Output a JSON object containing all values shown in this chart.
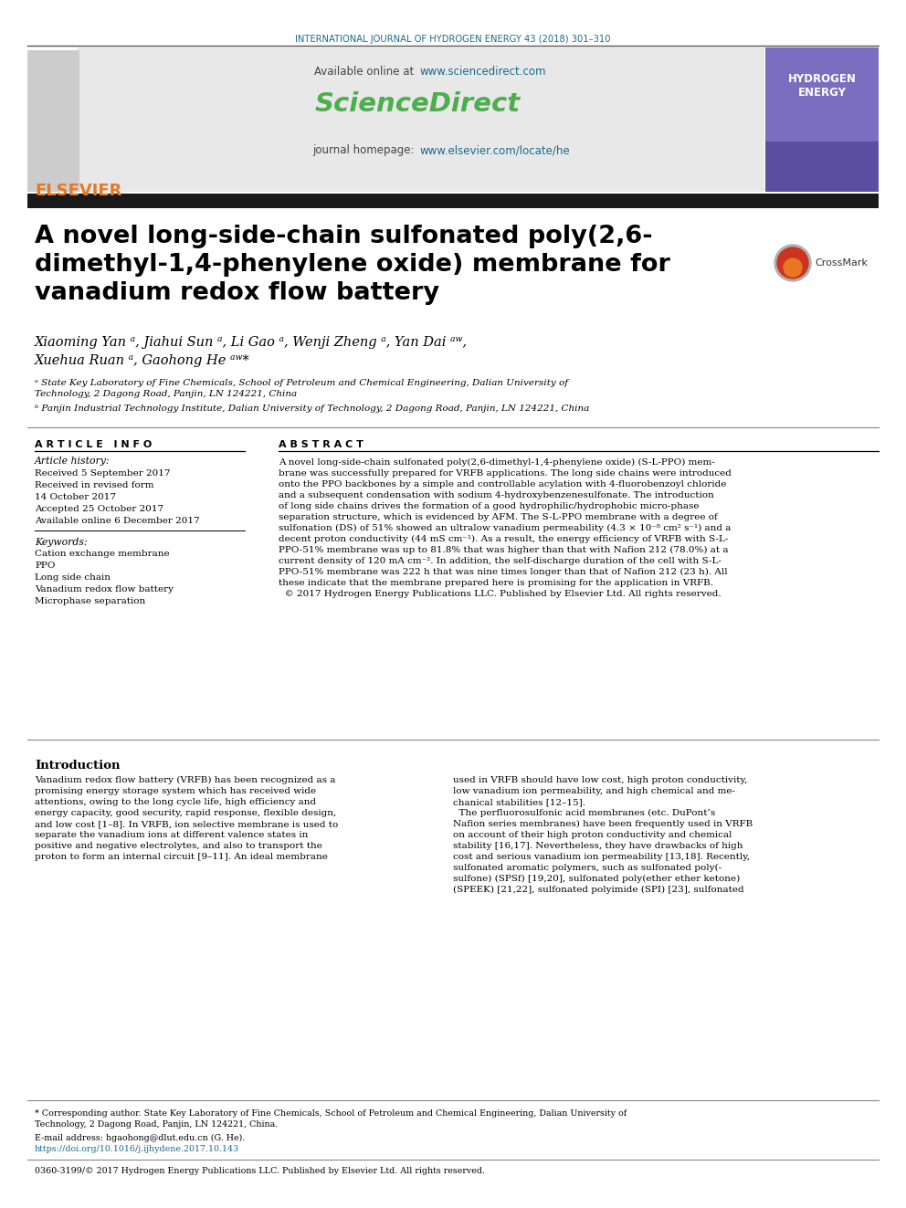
{
  "journal_header": "INTERNATIONAL JOURNAL OF HYDROGEN ENERGY 43 (2018) 301–310",
  "journal_header_color": "#1a6b8a",
  "sciencedirect_url": "www.sciencedirect.com",
  "sciencedirect_color": "#4cae4c",
  "elsevier_url": "www.elsevier.com/locate/he",
  "elsevier_text": "ELSEVIER",
  "elsevier_color_logo": "#e87722",
  "title": "A novel long-side-chain sulfonated poly(2,6-\ndimethyl-1,4-phenylene oxide) membrane for\nvanadium redox flow battery",
  "authors": "Xiaoming Yan ᵃ, Jiahui Sun ᵃ, Li Gao ᵃ, Wenji Zheng ᵃ, Yan Dai ᵃʷ,\nXuehua Ruan ᵃ, Gaohong He ᵃʷ*",
  "affil_a": "ᵃ State Key Laboratory of Fine Chemicals, School of Petroleum and Chemical Engineering, Dalian University of\nTechnology, 2 Dagong Road, Panjin, LN 124221, China",
  "affil_b": "ᵇ Panjin Industrial Technology Institute, Dalian University of Technology, 2 Dagong Road, Panjin, LN 124221, China",
  "article_info_header": "A R T I C L E   I N F O",
  "article_history_label": "Article history:",
  "received1": "Received 5 September 2017",
  "received_revised": "Received in revised form",
  "received_revised_date": "14 October 2017",
  "accepted": "Accepted 25 October 2017",
  "available": "Available online 6 December 2017",
  "keywords_label": "Keywords:",
  "keywords": [
    "Cation exchange membrane",
    "PPO",
    "Long side chain",
    "Vanadium redox flow battery",
    "Microphase separation"
  ],
  "abstract_header": "A B S T R A C T",
  "abstract_text": "A novel long-side-chain sulfonated poly(2,6-dimethyl-1,4-phenylene oxide) (S-L-PPO) mem-\nbrane was successfully prepared for VRFB applications. The long side chains were introduced\nonto the PPO backbones by a simple and controllable acylation with 4-fluorobenzoyl chloride\nand a subsequent condensation with sodium 4-hydroxybenzenesulfonate. The introduction\nof long side chains drives the formation of a good hydrophilic/hydrophobic micro-phase\nseparation structure, which is evidenced by AFM. The S-L-PPO membrane with a degree of\nsulfonation (DS) of 51% showed an ultralow vanadium permeability (4.3 × 10⁻⁸ cm² s⁻¹) and a\ndecent proton conductivity (44 mS cm⁻¹). As a result, the energy efficiency of VRFB with S-L-\nPPO-51% membrane was up to 81.8% that was higher than that with Nafion 212 (78.0%) at a\ncurrent density of 120 mA cm⁻². In addition, the self-discharge duration of the cell with S-L-\nPPO-51% membrane was 222 h that was nine times longer than that of Nafion 212 (23 h). All\nthese indicate that the membrane prepared here is promising for the application in VRFB.\n  © 2017 Hydrogen Energy Publications LLC. Published by Elsevier Ltd. All rights reserved.",
  "intro_header": "Introduction",
  "intro_text_col1": "Vanadium redox flow battery (VRFB) has been recognized as a\npromising energy storage system which has received wide\nattentions, owing to the long cycle life, high efficiency and\nenergy capacity, good security, rapid response, flexible design,\nand low cost [1–8]. In VRFB, ion selective membrane is used to\nseparate the vanadium ions at different valence states in\npositive and negative electrolytes, and also to transport the\nproton to form an internal circuit [9–11]. An ideal membrane",
  "intro_text_col2": "used in VRFB should have low cost, high proton conductivity,\nlow vanadium ion permeability, and high chemical and me-\nchanical stabilities [12–15].\n  The perfluorosulfonic acid membranes (etc. DuPont’s\nNafion series membranes) have been frequently used in VRFB\non account of their high proton conductivity and chemical\nstability [16,17]. Nevertheless, they have drawbacks of high\ncost and serious vanadium ion permeability [13,18]. Recently,\nsulfonated aromatic polymers, such as sulfonated poly(-\nsulfone) (SPSf) [19,20], sulfonated poly(ether ether ketone)\n(SPEEK) [21,22], sulfonated polyimide (SPI) [23], sulfonated",
  "footnote_star": "* Corresponding author. State Key Laboratory of Fine Chemicals, School of Petroleum and Chemical Engineering, Dalian University of\nTechnology, 2 Dagong Road, Panjin, LN 124221, China.",
  "footnote_email": "E-mail address: hgaohong@dlut.edu.cn (G. He).",
  "footnote_doi": "https://doi.org/10.1016/j.ijhydene.2017.10.143",
  "footnote_issn": "0360-3199/© 2017 Hydrogen Energy Publications LLC. Published by Elsevier Ltd. All rights reserved.",
  "bg_color": "#ffffff",
  "black_bar_color": "#1a1a1a",
  "text_color": "#000000",
  "link_color": "#1a6b8a"
}
